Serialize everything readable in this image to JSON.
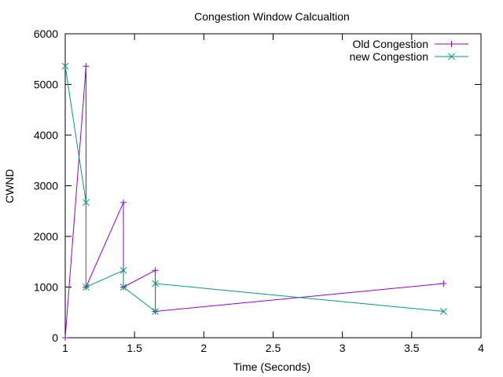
{
  "chart_data": {
    "type": "line",
    "title": "Congestion Window Calcualtion",
    "xlabel": "Time (Seconds)",
    "ylabel": "CWND",
    "xlim": [
      1,
      4
    ],
    "ylim": [
      0,
      6000
    ],
    "xticks": [
      1,
      1.5,
      2,
      2.5,
      3,
      3.5,
      4
    ],
    "xtick_labels": [
      "1",
      "1.5",
      "2",
      "2.5",
      "3",
      "3.5",
      "4"
    ],
    "yticks": [
      0,
      1000,
      2000,
      3000,
      4000,
      5000,
      6000
    ],
    "ytick_labels": [
      "0",
      "1000",
      "2000",
      "3000",
      "4000",
      "5000",
      "6000"
    ],
    "grid": false,
    "legend_position": "top-right",
    "series": [
      {
        "name": "Old Congestion",
        "color": "#9400d3",
        "marker": "plus",
        "x": [
          1.0,
          1.15,
          1.15,
          1.42,
          1.42,
          1.65,
          1.65,
          3.73
        ],
        "y": [
          0,
          5360,
          1000,
          2670,
          1000,
          1330,
          520,
          1070
        ]
      },
      {
        "name": "new Congestion",
        "color": "#009e73",
        "marker": "x",
        "x": [
          1.0,
          1.15,
          1.15,
          1.42,
          1.42,
          1.65,
          1.65,
          3.73
        ],
        "y": [
          5360,
          2670,
          1000,
          1330,
          1000,
          520,
          1070,
          520
        ]
      }
    ]
  }
}
